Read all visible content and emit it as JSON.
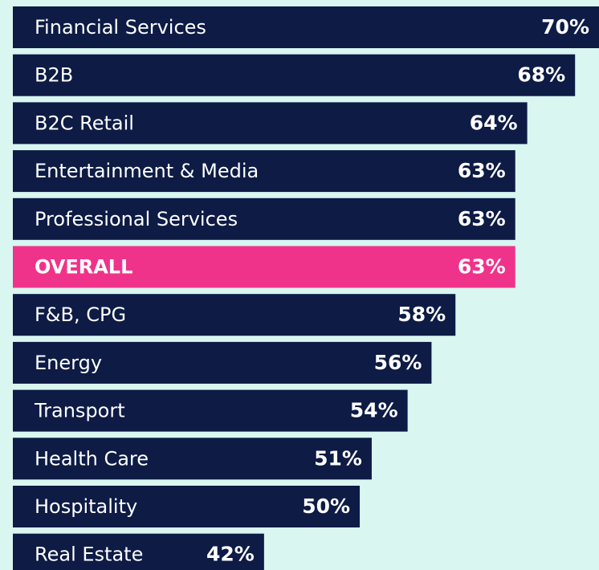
{
  "chart_data": {
    "type": "bar",
    "orientation": "horizontal",
    "categories": [
      "Financial Services",
      "B2B",
      "B2C Retail",
      "Entertainment & Media",
      "Professional Services",
      "OVERALL",
      "F&B, CPG",
      "Energy",
      "Transport",
      "Health Care",
      "Hospitality",
      "Real Estate"
    ],
    "values": [
      70,
      68,
      64,
      63,
      63,
      63,
      58,
      56,
      54,
      51,
      50,
      42
    ],
    "value_labels": [
      "70%",
      "68%",
      "64%",
      "63%",
      "63%",
      "63%",
      "58%",
      "56%",
      "54%",
      "51%",
      "50%",
      "42%"
    ],
    "colors": [
      "#0d1b45",
      "#0d1b45",
      "#0d1b45",
      "#0d1b45",
      "#0d1b45",
      "#f0338a",
      "#0d1b45",
      "#0d1b45",
      "#0d1b45",
      "#0d1b45",
      "#0d1b45",
      "#0d1b45"
    ],
    "xlim": [
      21,
      70
    ]
  }
}
